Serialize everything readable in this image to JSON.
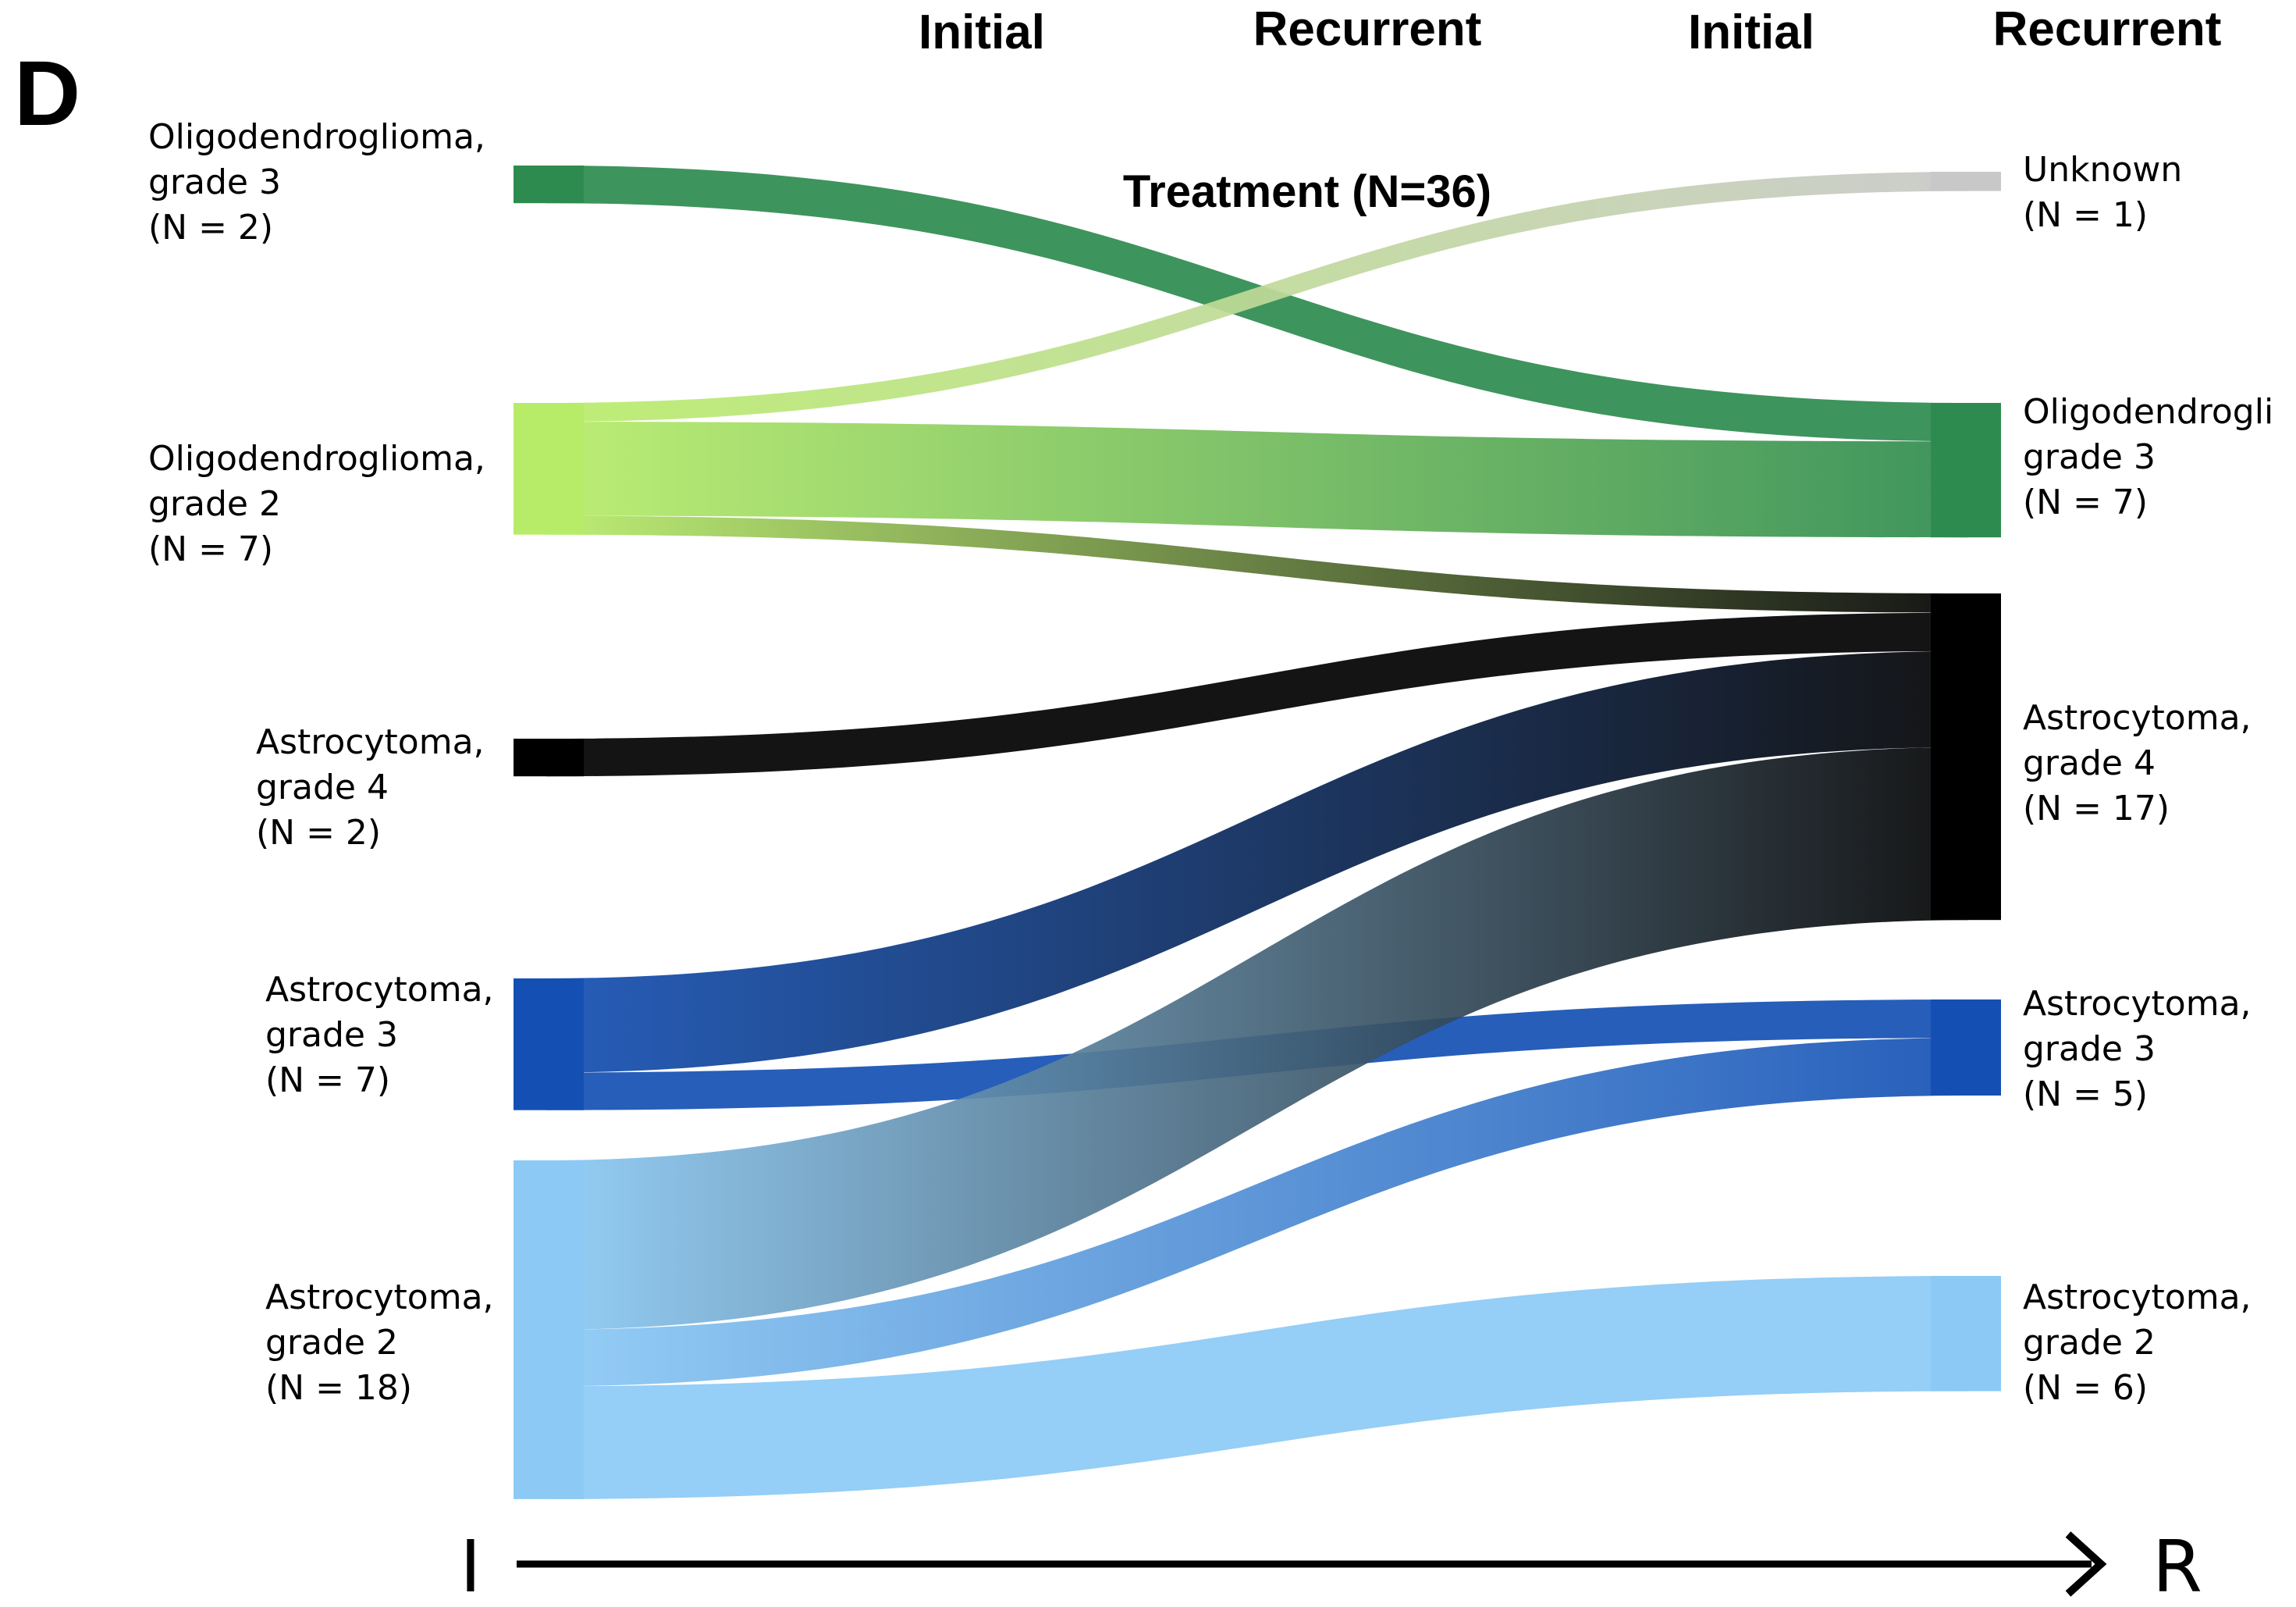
{
  "panel_letter": "D",
  "headers": [
    "Initial",
    "Recurrent",
    "Initial",
    "Recurrent"
  ],
  "title": "Treatment (N=36)",
  "axis": {
    "start": "I",
    "end": "R"
  },
  "nodes": {
    "initial": [
      {
        "id": "i_o3",
        "lines": [
          "Oligodendroglioma,",
          "grade 3",
          "(N = 2)"
        ],
        "n": 2,
        "color": "#2e8b4f"
      },
      {
        "id": "i_o2",
        "lines": [
          "Oligodendroglioma,",
          "grade 2",
          "(N = 7)"
        ],
        "n": 7,
        "color": "#b7ec69"
      },
      {
        "id": "i_a4",
        "lines": [
          "Astrocytoma,",
          "grade 4",
          "(N = 2)"
        ],
        "n": 2,
        "color": "#000000"
      },
      {
        "id": "i_a3",
        "lines": [
          "Astrocytoma,",
          "grade 3",
          "(N = 7)"
        ],
        "n": 7,
        "color": "#1450b4"
      },
      {
        "id": "i_a2",
        "lines": [
          "Astrocytoma,",
          "grade 2",
          "(N = 18)"
        ],
        "n": 18,
        "color": "#8ccaf5"
      }
    ],
    "recurrent": [
      {
        "id": "r_unk",
        "lines": [
          "Unknown",
          "(N = 1)"
        ],
        "n": 1,
        "color": "#c8c8c8"
      },
      {
        "id": "r_o3",
        "lines": [
          "Oligodendrogli",
          "grade 3",
          "(N = 7)"
        ],
        "n": 7,
        "color": "#2e8b4f"
      },
      {
        "id": "r_a4",
        "lines": [
          "Astrocytoma,",
          "grade 4",
          "(N = 17)"
        ],
        "n": 17,
        "color": "#000000"
      },
      {
        "id": "r_a3",
        "lines": [
          "Astrocytoma,",
          "grade 3",
          "(N = 5)"
        ],
        "n": 5,
        "color": "#1450b4"
      },
      {
        "id": "r_a2",
        "lines": [
          "Astrocytoma,",
          "grade 2",
          "(N = 6)"
        ],
        "n": 6,
        "color": "#8ccaf5"
      }
    ]
  },
  "flows": [
    {
      "from": "i_o3",
      "to": "r_o3",
      "n": 2
    },
    {
      "from": "i_o2",
      "to": "r_unk",
      "n": 1
    },
    {
      "from": "i_o2",
      "to": "r_o3",
      "n": 5
    },
    {
      "from": "i_o2",
      "to": "r_a4",
      "n": 1
    },
    {
      "from": "i_a4",
      "to": "r_a4",
      "n": 2
    },
    {
      "from": "i_a3",
      "to": "r_a4",
      "n": 5
    },
    {
      "from": "i_a3",
      "to": "r_a3",
      "n": 2
    },
    {
      "from": "i_a2",
      "to": "r_a4",
      "n": 9
    },
    {
      "from": "i_a2",
      "to": "r_a3",
      "n": 3
    },
    {
      "from": "i_a2",
      "to": "r_a2",
      "n": 6
    }
  ]
}
